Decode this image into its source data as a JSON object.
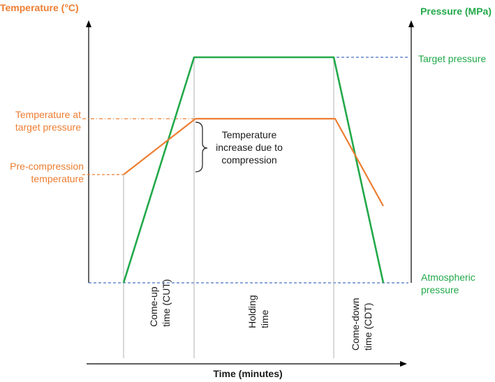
{
  "colors": {
    "temperature": "#ED7D31",
    "pressure": "#22A94A",
    "reference_lines": "#4472C4",
    "axis": "#000000",
    "phase_dividers": "#bfbfbf"
  },
  "axes": {
    "left_title": "Temperature (°C)",
    "right_title": "Pressure (MPa)",
    "bottom_title": "Time (minutes)"
  },
  "pressure_labels": {
    "target": "Target pressure",
    "atmospheric_line1": "Atmospheric",
    "atmospheric_line2": "pressure"
  },
  "temperature_labels": {
    "at_target_line1": "Temperature at",
    "at_target_line2": "target pressure",
    "pre_line1": "Pre-compression",
    "pre_line2": "temperature"
  },
  "annotation": {
    "line1": "Temperature",
    "line2": "increase due to",
    "line3": "compression"
  },
  "phases": {
    "cut_line1": "Come-up",
    "cut_line2": "time  (CUT)",
    "holding_line1": "Holding",
    "holding_line2": "time",
    "cdt_line1": "Come-down",
    "cdt_line2": "time (CDT)"
  }
}
